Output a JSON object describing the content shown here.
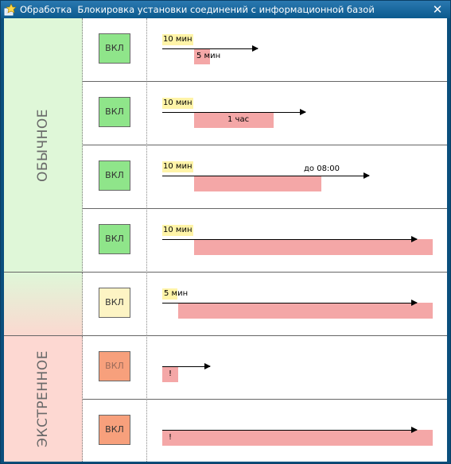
{
  "window": {
    "title_kind": "Обработка",
    "title_name": "Блокировка установки соединений с информационной базой",
    "close_glyph": "✕"
  },
  "modes": {
    "normal": "ОБЫЧНОЕ",
    "emergency": "ЭКСТРЕННОЕ"
  },
  "button_label": "ВКЛ",
  "rows": [
    {
      "mode": "normal",
      "button_state": "green",
      "warning": "10 мин",
      "bar_label": "5 мин"
    },
    {
      "mode": "normal",
      "button_state": "green",
      "warning": "10 мин",
      "bar_label": "1 час"
    },
    {
      "mode": "normal",
      "button_state": "green",
      "warning": "10 мин",
      "end_label": "до 08:00"
    },
    {
      "mode": "normal",
      "button_state": "green",
      "warning": "10 мин"
    },
    {
      "mode": "mixed",
      "button_state": "yellow",
      "warning": "5 мин"
    },
    {
      "mode": "emergency",
      "button_state": "orange-disabled",
      "bar_label": "!"
    },
    {
      "mode": "emergency",
      "button_state": "orange",
      "bar_label": "!"
    }
  ],
  "colors": {
    "title_bar": "#0b5a8e",
    "normal_bg": "#dff7d8",
    "emergency_bg": "#fdd8d2",
    "warning_box": "#fff4a8",
    "block_bar": "#f4a7a7",
    "btn_green": "#8fe58a",
    "btn_yellow": "#fdf4c4",
    "btn_orange": "#f7a07c"
  }
}
